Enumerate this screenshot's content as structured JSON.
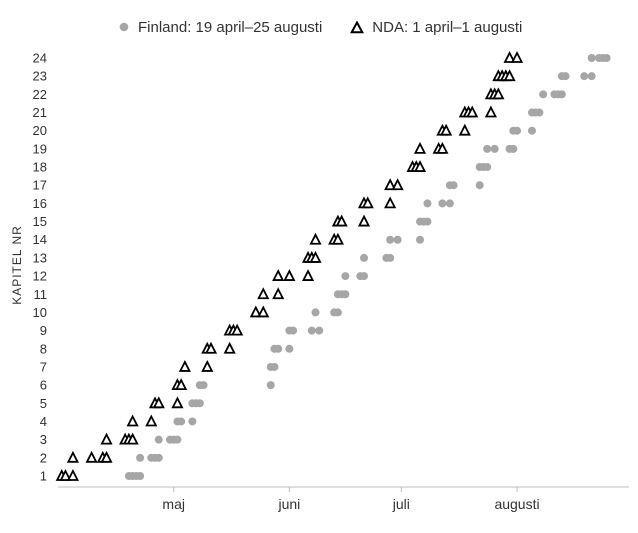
{
  "chart_data": {
    "type": "scatter",
    "ylabel": "KAPITEL NR",
    "xlabel": "",
    "title": "",
    "ylim": [
      1,
      24
    ],
    "yticks": [
      "1",
      "2",
      "3",
      "4",
      "5",
      "6",
      "7",
      "8",
      "9",
      "10",
      "11",
      "12",
      "13",
      "14",
      "15",
      "16",
      "17",
      "18",
      "19",
      "20",
      "21",
      "22",
      "23",
      "24"
    ],
    "xlim": [
      "2019-03-31",
      "2019-08-31"
    ],
    "xticks": [
      {
        "label": "maj",
        "date": "2019-05-01"
      },
      {
        "label": "juni",
        "date": "2019-06-01"
      },
      {
        "label": "juli",
        "date": "2019-07-01"
      },
      {
        "label": "augusti",
        "date": "2019-08-01"
      }
    ],
    "grid": false,
    "legend_position": "top",
    "series": [
      {
        "name": "Finland: 19 april–25 augusti",
        "marker": "circle",
        "color": "#a6a6a6",
        "points": [
          {
            "x": "2019-04-19",
            "y": 1
          },
          {
            "x": "2019-04-20",
            "y": 1
          },
          {
            "x": "2019-04-21",
            "y": 1
          },
          {
            "x": "2019-04-22",
            "y": 1
          },
          {
            "x": "2019-04-22",
            "y": 2
          },
          {
            "x": "2019-04-25",
            "y": 2
          },
          {
            "x": "2019-04-26",
            "y": 2
          },
          {
            "x": "2019-04-27",
            "y": 2
          },
          {
            "x": "2019-04-27",
            "y": 3
          },
          {
            "x": "2019-04-30",
            "y": 3
          },
          {
            "x": "2019-05-01",
            "y": 3
          },
          {
            "x": "2019-05-02",
            "y": 3
          },
          {
            "x": "2019-05-02",
            "y": 4
          },
          {
            "x": "2019-05-03",
            "y": 4
          },
          {
            "x": "2019-05-06",
            "y": 4
          },
          {
            "x": "2019-05-06",
            "y": 5
          },
          {
            "x": "2019-05-07",
            "y": 5
          },
          {
            "x": "2019-05-08",
            "y": 5
          },
          {
            "x": "2019-05-08",
            "y": 6
          },
          {
            "x": "2019-05-09",
            "y": 6
          },
          {
            "x": "2019-05-27",
            "y": 6
          },
          {
            "x": "2019-05-27",
            "y": 7
          },
          {
            "x": "2019-05-28",
            "y": 7
          },
          {
            "x": "2019-05-28",
            "y": 8
          },
          {
            "x": "2019-05-29",
            "y": 8
          },
          {
            "x": "2019-06-01",
            "y": 8
          },
          {
            "x": "2019-06-01",
            "y": 9
          },
          {
            "x": "2019-06-02",
            "y": 9
          },
          {
            "x": "2019-06-07",
            "y": 9
          },
          {
            "x": "2019-06-09",
            "y": 9
          },
          {
            "x": "2019-06-08",
            "y": 10
          },
          {
            "x": "2019-06-13",
            "y": 10
          },
          {
            "x": "2019-06-14",
            "y": 10
          },
          {
            "x": "2019-06-14",
            "y": 11
          },
          {
            "x": "2019-06-15",
            "y": 11
          },
          {
            "x": "2019-06-16",
            "y": 11
          },
          {
            "x": "2019-06-16",
            "y": 12
          },
          {
            "x": "2019-06-20",
            "y": 12
          },
          {
            "x": "2019-06-21",
            "y": 12
          },
          {
            "x": "2019-06-21",
            "y": 13
          },
          {
            "x": "2019-06-27",
            "y": 13
          },
          {
            "x": "2019-06-28",
            "y": 13
          },
          {
            "x": "2019-06-28",
            "y": 14
          },
          {
            "x": "2019-06-30",
            "y": 14
          },
          {
            "x": "2019-07-06",
            "y": 14
          },
          {
            "x": "2019-07-06",
            "y": 15
          },
          {
            "x": "2019-07-07",
            "y": 15
          },
          {
            "x": "2019-07-08",
            "y": 15
          },
          {
            "x": "2019-07-08",
            "y": 16
          },
          {
            "x": "2019-07-12",
            "y": 16
          },
          {
            "x": "2019-07-14",
            "y": 16
          },
          {
            "x": "2019-07-14",
            "y": 17
          },
          {
            "x": "2019-07-15",
            "y": 17
          },
          {
            "x": "2019-07-22",
            "y": 17
          },
          {
            "x": "2019-07-22",
            "y": 18
          },
          {
            "x": "2019-07-23",
            "y": 18
          },
          {
            "x": "2019-07-24",
            "y": 18
          },
          {
            "x": "2019-07-24",
            "y": 19
          },
          {
            "x": "2019-07-26",
            "y": 19
          },
          {
            "x": "2019-07-30",
            "y": 19
          },
          {
            "x": "2019-07-31",
            "y": 19
          },
          {
            "x": "2019-07-31",
            "y": 20
          },
          {
            "x": "2019-08-01",
            "y": 20
          },
          {
            "x": "2019-08-05",
            "y": 20
          },
          {
            "x": "2019-08-05",
            "y": 21
          },
          {
            "x": "2019-08-06",
            "y": 21
          },
          {
            "x": "2019-08-07",
            "y": 21
          },
          {
            "x": "2019-08-08",
            "y": 22
          },
          {
            "x": "2019-08-11",
            "y": 22
          },
          {
            "x": "2019-08-12",
            "y": 22
          },
          {
            "x": "2019-08-13",
            "y": 22
          },
          {
            "x": "2019-08-13",
            "y": 23
          },
          {
            "x": "2019-08-14",
            "y": 23
          },
          {
            "x": "2019-08-19",
            "y": 23
          },
          {
            "x": "2019-08-21",
            "y": 23
          },
          {
            "x": "2019-08-21",
            "y": 24
          },
          {
            "x": "2019-08-23",
            "y": 24
          },
          {
            "x": "2019-08-24",
            "y": 24
          },
          {
            "x": "2019-08-25",
            "y": 24
          }
        ]
      },
      {
        "name": "NDA: 1 april–1 augusti",
        "marker": "triangle",
        "color": "#000000",
        "points": [
          {
            "x": "2019-04-01",
            "y": 1
          },
          {
            "x": "2019-04-02",
            "y": 1
          },
          {
            "x": "2019-04-04",
            "y": 1
          },
          {
            "x": "2019-04-04",
            "y": 2
          },
          {
            "x": "2019-04-09",
            "y": 2
          },
          {
            "x": "2019-04-12",
            "y": 2
          },
          {
            "x": "2019-04-13",
            "y": 2
          },
          {
            "x": "2019-04-13",
            "y": 3
          },
          {
            "x": "2019-04-18",
            "y": 3
          },
          {
            "x": "2019-04-19",
            "y": 3
          },
          {
            "x": "2019-04-20",
            "y": 3
          },
          {
            "x": "2019-04-20",
            "y": 4
          },
          {
            "x": "2019-04-25",
            "y": 4
          },
          {
            "x": "2019-04-26",
            "y": 5
          },
          {
            "x": "2019-04-27",
            "y": 5
          },
          {
            "x": "2019-05-02",
            "y": 5
          },
          {
            "x": "2019-05-02",
            "y": 6
          },
          {
            "x": "2019-05-03",
            "y": 6
          },
          {
            "x": "2019-05-04",
            "y": 7
          },
          {
            "x": "2019-05-10",
            "y": 7
          },
          {
            "x": "2019-05-10",
            "y": 8
          },
          {
            "x": "2019-05-11",
            "y": 8
          },
          {
            "x": "2019-05-16",
            "y": 8
          },
          {
            "x": "2019-05-16",
            "y": 9
          },
          {
            "x": "2019-05-17",
            "y": 9
          },
          {
            "x": "2019-05-18",
            "y": 9
          },
          {
            "x": "2019-05-23",
            "y": 10
          },
          {
            "x": "2019-05-25",
            "y": 10
          },
          {
            "x": "2019-05-25",
            "y": 11
          },
          {
            "x": "2019-05-29",
            "y": 11
          },
          {
            "x": "2019-05-29",
            "y": 12
          },
          {
            "x": "2019-06-01",
            "y": 12
          },
          {
            "x": "2019-06-06",
            "y": 12
          },
          {
            "x": "2019-06-06",
            "y": 13
          },
          {
            "x": "2019-06-07",
            "y": 13
          },
          {
            "x": "2019-06-08",
            "y": 13
          },
          {
            "x": "2019-06-08",
            "y": 14
          },
          {
            "x": "2019-06-13",
            "y": 14
          },
          {
            "x": "2019-06-14",
            "y": 14
          },
          {
            "x": "2019-06-14",
            "y": 15
          },
          {
            "x": "2019-06-15",
            "y": 15
          },
          {
            "x": "2019-06-21",
            "y": 15
          },
          {
            "x": "2019-06-21",
            "y": 16
          },
          {
            "x": "2019-06-22",
            "y": 16
          },
          {
            "x": "2019-06-28",
            "y": 16
          },
          {
            "x": "2019-06-28",
            "y": 17
          },
          {
            "x": "2019-06-30",
            "y": 17
          },
          {
            "x": "2019-07-04",
            "y": 18
          },
          {
            "x": "2019-07-05",
            "y": 18
          },
          {
            "x": "2019-07-06",
            "y": 18
          },
          {
            "x": "2019-07-06",
            "y": 19
          },
          {
            "x": "2019-07-11",
            "y": 19
          },
          {
            "x": "2019-07-12",
            "y": 19
          },
          {
            "x": "2019-07-12",
            "y": 20
          },
          {
            "x": "2019-07-13",
            "y": 20
          },
          {
            "x": "2019-07-18",
            "y": 20
          },
          {
            "x": "2019-07-18",
            "y": 21
          },
          {
            "x": "2019-07-19",
            "y": 21
          },
          {
            "x": "2019-07-20",
            "y": 21
          },
          {
            "x": "2019-07-25",
            "y": 21
          },
          {
            "x": "2019-07-25",
            "y": 22
          },
          {
            "x": "2019-07-26",
            "y": 22
          },
          {
            "x": "2019-07-27",
            "y": 22
          },
          {
            "x": "2019-07-27",
            "y": 23
          },
          {
            "x": "2019-07-28",
            "y": 23
          },
          {
            "x": "2019-07-29",
            "y": 23
          },
          {
            "x": "2019-07-30",
            "y": 23
          },
          {
            "x": "2019-07-30",
            "y": 24
          },
          {
            "x": "2019-08-01",
            "y": 24
          }
        ]
      }
    ]
  }
}
